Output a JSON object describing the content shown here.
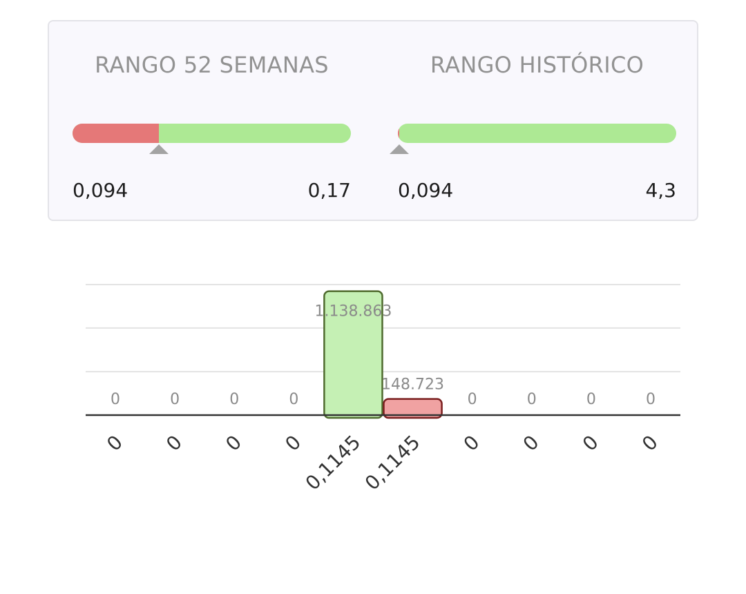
{
  "ranges": [
    {
      "title": "RANGO 52 SEMANAS",
      "min": "0,094",
      "max": "0,17",
      "position": 0.31
    },
    {
      "title": "RANGO HISTÓRICO",
      "min": "0,094",
      "max": "4,3",
      "position": 0.005
    }
  ],
  "colors": {
    "up": "#c5f0b4",
    "up_border": "#4f6b2e",
    "down": "#f0a2a2",
    "down_border": "#7a1f1f"
  },
  "chart_data": {
    "type": "bar",
    "title": "",
    "xlabel": "",
    "ylabel": "",
    "categories": [
      "0",
      "0",
      "0",
      "0",
      "0,1145",
      "0,1145",
      "0",
      "0",
      "0",
      "0"
    ],
    "values": [
      0,
      0,
      0,
      0,
      1138863,
      148723,
      0,
      0,
      0,
      0
    ],
    "value_labels": [
      "0",
      "0",
      "0",
      "0",
      "1.138.863",
      "148.723",
      "0",
      "0",
      "0",
      "0"
    ],
    "bar_colors": [
      "",
      "",
      "",
      "",
      "up",
      "down",
      "",
      "",
      "",
      ""
    ],
    "ylim": [
      0,
      1200000
    ],
    "grid": true
  }
}
